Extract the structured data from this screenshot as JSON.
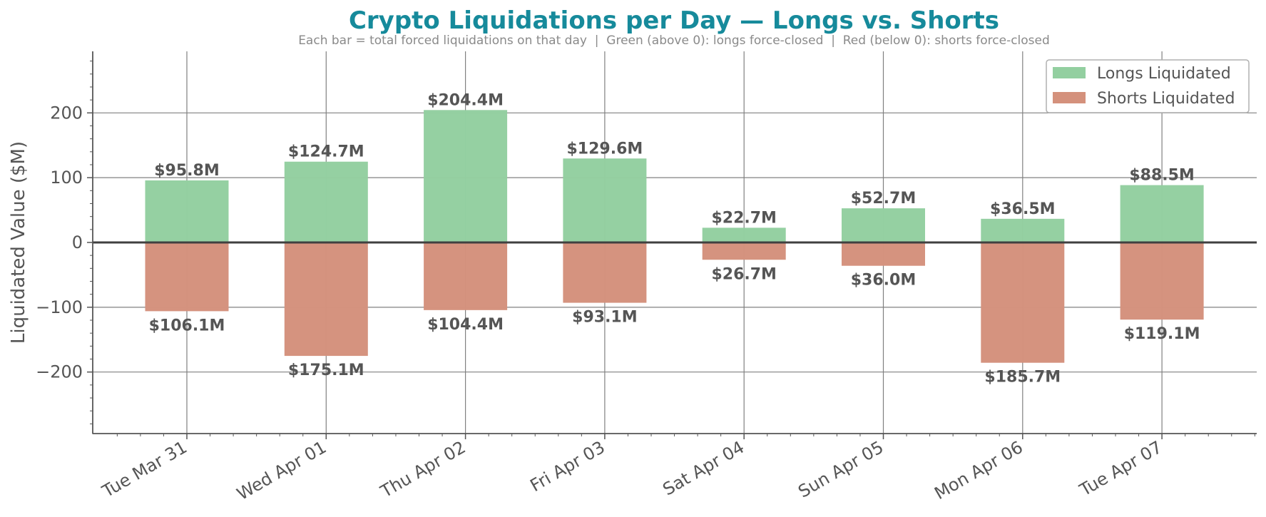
{
  "chart_data": {
    "type": "bar",
    "title": "Crypto Liquidations per Day — Longs vs. Shorts",
    "subtitle": "Each bar = total forced liquidations on that day  |  Green (above 0): longs force-closed  |  Red (below 0): shorts force-closed",
    "xlabel": "",
    "ylabel": "Liquidated Value ($M)",
    "ylim": [
      -295,
      295
    ],
    "yticks": [
      -200,
      -100,
      0,
      100,
      200
    ],
    "ytick_labels": [
      "−200",
      "−100",
      "0",
      "100",
      "200"
    ],
    "grid": true,
    "legend_position": "top-right",
    "categories": [
      "Tue Mar 31",
      "Wed Apr 01",
      "Thu Apr 02",
      "Fri Apr 03",
      "Sat Apr 04",
      "Sun Apr 05",
      "Mon Apr 06",
      "Tue Apr 07"
    ],
    "series": [
      {
        "name": "Longs Liquidated",
        "color": "#93cfa0",
        "values": [
          95.8,
          124.7,
          204.4,
          129.6,
          22.7,
          52.7,
          36.5,
          88.5
        ],
        "labels": [
          "$95.8M",
          "$124.7M",
          "$204.4M",
          "$129.6M",
          "$22.7M",
          "$52.7M",
          "$36.5M",
          "$88.5M"
        ]
      },
      {
        "name": "Shorts Liquidated",
        "color": "#d4917c",
        "values": [
          -106.1,
          -175.1,
          -104.4,
          -93.1,
          -26.7,
          -36.0,
          -185.7,
          -119.1
        ],
        "labels": [
          "$106.1M",
          "$175.1M",
          "$104.4M",
          "$93.1M",
          "$26.7M",
          "$36.0M",
          "$185.7M",
          "$119.1M"
        ]
      }
    ]
  }
}
